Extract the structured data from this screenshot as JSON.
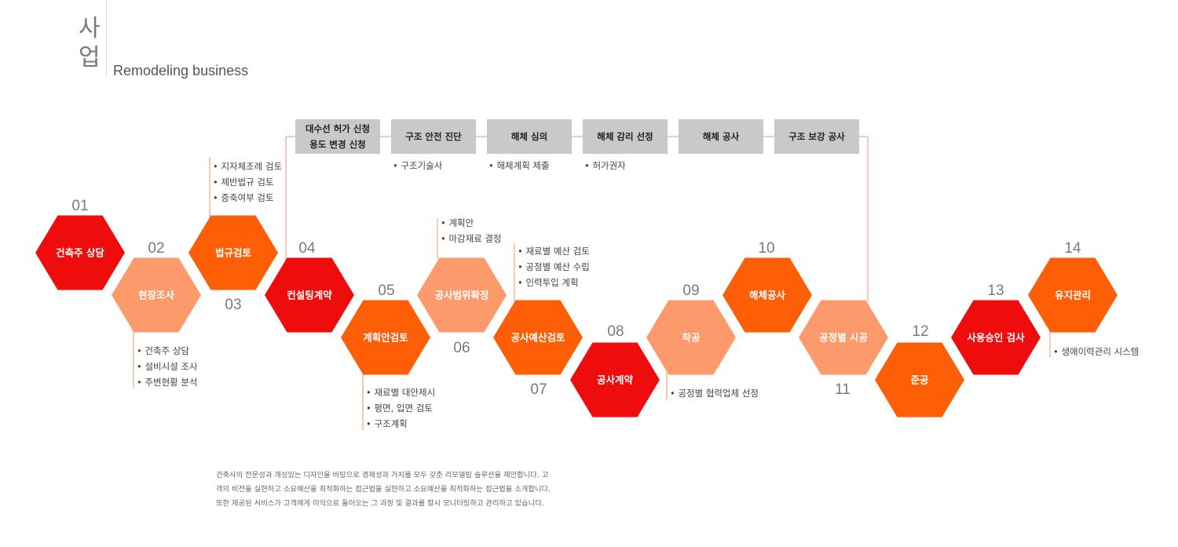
{
  "header": {
    "title_line1": "사",
    "title_line2": "업",
    "subtitle": "Remodeling business"
  },
  "colors": {
    "red": "#ee0c0c",
    "orange": "#fd5e06",
    "light": "#fc9a6c",
    "gray_box": "#c9c9c9",
    "line": "#f6a57f"
  },
  "process_steps": [
    {
      "num": "01",
      "label": "건축주 상담",
      "color": "red"
    },
    {
      "num": "02",
      "label": "현장조사",
      "color": "light"
    },
    {
      "num": "03",
      "label": "법규검토",
      "color": "orange"
    },
    {
      "num": "04",
      "label": "컨설팅계약",
      "color": "red"
    },
    {
      "num": "05",
      "label": "계획안검토",
      "color": "orange"
    },
    {
      "num": "06",
      "label": "공사범위확정",
      "color": "light"
    },
    {
      "num": "07",
      "label": "공사예산검토",
      "color": "orange"
    },
    {
      "num": "08",
      "label": "공사계약",
      "color": "red"
    },
    {
      "num": "09",
      "label": "착공",
      "color": "light"
    },
    {
      "num": "10",
      "label": "해체공사",
      "color": "orange"
    },
    {
      "num": "11",
      "label": "공정별 시공",
      "color": "light"
    },
    {
      "num": "12",
      "label": "준공",
      "color": "orange"
    },
    {
      "num": "13",
      "label": "사용승인 검사",
      "color": "red"
    },
    {
      "num": "14",
      "label": "유지관리",
      "color": "orange"
    }
  ],
  "notes": [
    {
      "step": "02",
      "items": [
        "건축주 상담",
        "설비시설 조사",
        "주변현황 분석"
      ]
    },
    {
      "step": "03",
      "items": [
        "지자체조례 검토",
        "제반법규 검토",
        "증축여부 검토"
      ]
    },
    {
      "step": "05",
      "items": [
        "재료별 대안제시",
        "평면, 입면 검토",
        "구조계획"
      ]
    },
    {
      "step": "06",
      "items": [
        "계획안",
        "마감재료 결정"
      ]
    },
    {
      "step": "07",
      "items": [
        "재료별 예산 검토",
        "공정별 예산 수립",
        "인력투입 계획"
      ]
    },
    {
      "step": "09",
      "items": [
        "공정별 협력업체 선정"
      ]
    },
    {
      "step": "14",
      "items": [
        "생애이력관리 시스템"
      ]
    }
  ],
  "top_boxes": [
    {
      "lines": [
        "대수선 허가 신청",
        "용도 변경 신청"
      ],
      "note": ""
    },
    {
      "lines": [
        "구조 안전 진단"
      ],
      "note": "구조기술사"
    },
    {
      "lines": [
        "해체 심의"
      ],
      "note": "해체계획 제출"
    },
    {
      "lines": [
        "해체 감리 선정"
      ],
      "note": "허가권자"
    },
    {
      "lines": [
        "해체 공사"
      ],
      "note": ""
    },
    {
      "lines": [
        "구조 보강 공사"
      ],
      "note": ""
    }
  ],
  "description": "건축사의 전문성과 개성있는 디자인을 바탕으로 경제성과 가치를 모두 갖춘 리모델링 솔루션을 제안합니다. 고객의 비전을 실현하고 소요예산을 최적화하는 접근법을 실현하고 소요예산을 최적화하는 접근법을 소개합니다. 또한 제공된 서비스가 고객에게 이익으로 돌아오는 그 과정 및 결과를 항시 모니터링하고 관리하고 있습니다."
}
